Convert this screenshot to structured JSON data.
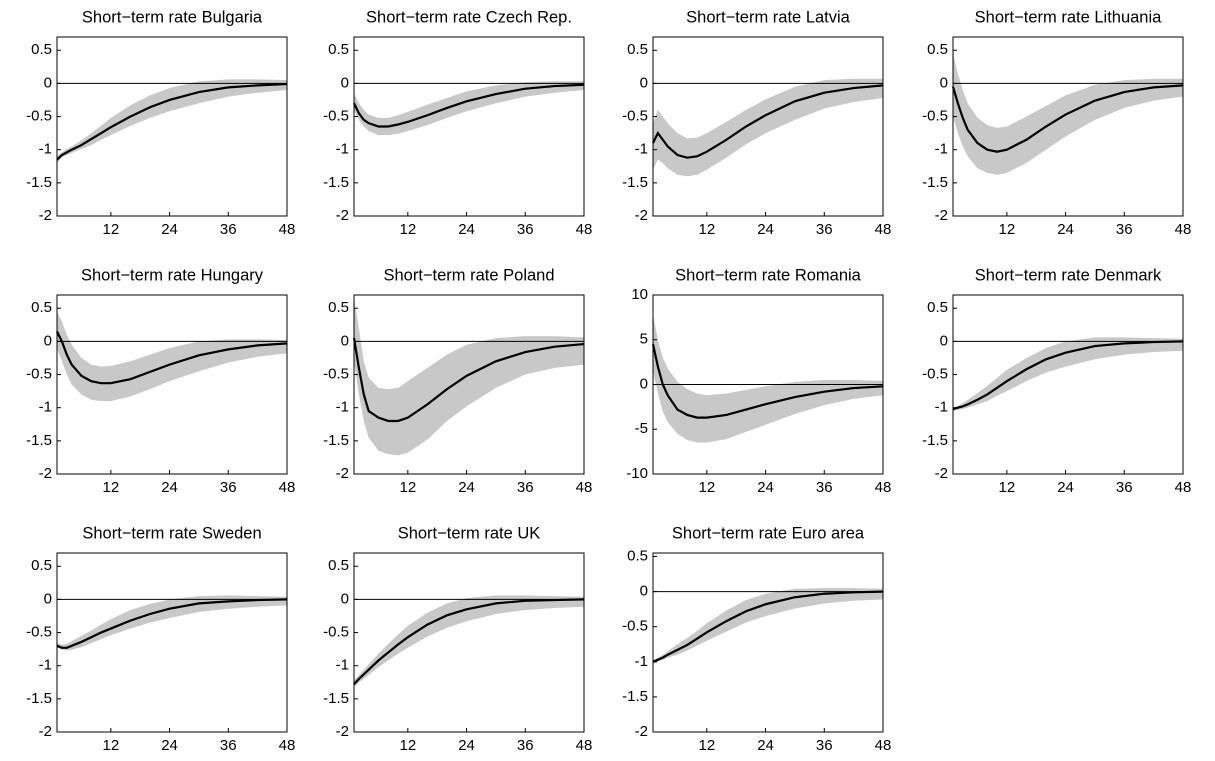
{
  "chart_data": [
    {
      "type": "line",
      "title": "Short−term rate Bulgaria",
      "x": [
        1,
        2,
        3,
        4,
        6,
        8,
        10,
        12,
        16,
        20,
        24,
        30,
        36,
        42,
        48
      ],
      "xlim": [
        1,
        48
      ],
      "xticks": [
        12,
        24,
        36,
        48
      ],
      "ylim": [
        -2,
        0.7
      ],
      "yticks": [
        -2,
        -1.5,
        -1,
        -0.5,
        0,
        0.5
      ],
      "hline": 0,
      "band": {
        "color": "#c8c8c8",
        "lower": [
          -1.2,
          -1.12,
          -1.08,
          -1.05,
          -0.99,
          -0.93,
          -0.85,
          -0.78,
          -0.64,
          -0.52,
          -0.42,
          -0.3,
          -0.2,
          -0.14,
          -0.1
        ],
        "upper": [
          -1.1,
          -1.04,
          -0.99,
          -0.95,
          -0.86,
          -0.75,
          -0.64,
          -0.52,
          -0.33,
          -0.18,
          -0.07,
          0.03,
          0.06,
          0.06,
          0.05
        ]
      },
      "series": [
        {
          "color": "#000000",
          "values": [
            -1.15,
            -1.08,
            -1.04,
            -1.0,
            -0.93,
            -0.84,
            -0.75,
            -0.66,
            -0.5,
            -0.36,
            -0.25,
            -0.13,
            -0.06,
            -0.03,
            -0.01
          ]
        }
      ]
    },
    {
      "type": "line",
      "title": "Short−term rate Czech Rep.",
      "x": [
        1,
        2,
        3,
        4,
        6,
        8,
        10,
        12,
        16,
        20,
        24,
        30,
        36,
        42,
        48
      ],
      "xlim": [
        1,
        48
      ],
      "xticks": [
        12,
        24,
        36,
        48
      ],
      "ylim": [
        -2,
        0.7
      ],
      "yticks": [
        -2,
        -1.5,
        -1,
        -0.5,
        0,
        0.5
      ],
      "hline": 0,
      "band": {
        "color": "#c8c8c8",
        "lower": [
          -0.4,
          -0.55,
          -0.65,
          -0.72,
          -0.78,
          -0.78,
          -0.76,
          -0.72,
          -0.63,
          -0.52,
          -0.42,
          -0.3,
          -0.2,
          -0.14,
          -0.1
        ],
        "upper": [
          -0.15,
          -0.3,
          -0.4,
          -0.47,
          -0.52,
          -0.52,
          -0.48,
          -0.43,
          -0.32,
          -0.22,
          -0.12,
          -0.03,
          0.02,
          0.03,
          0.03
        ]
      },
      "series": [
        {
          "color": "#000000",
          "values": [
            -0.3,
            -0.45,
            -0.55,
            -0.6,
            -0.65,
            -0.65,
            -0.62,
            -0.58,
            -0.48,
            -0.37,
            -0.27,
            -0.16,
            -0.08,
            -0.04,
            -0.02
          ]
        }
      ]
    },
    {
      "type": "line",
      "title": "Short−term rate Latvia",
      "x": [
        1,
        2,
        3,
        4,
        6,
        8,
        10,
        12,
        16,
        20,
        24,
        30,
        36,
        42,
        48
      ],
      "xlim": [
        1,
        48
      ],
      "xticks": [
        12,
        24,
        36,
        48
      ],
      "ylim": [
        -2,
        0.7
      ],
      "yticks": [
        -2,
        -1.5,
        -1,
        -0.5,
        0,
        0.5
      ],
      "hline": 0,
      "band": {
        "color": "#c8c8c8",
        "lower": [
          -1.3,
          -1.15,
          -1.2,
          -1.28,
          -1.38,
          -1.4,
          -1.38,
          -1.3,
          -1.12,
          -0.92,
          -0.75,
          -0.55,
          -0.38,
          -0.28,
          -0.22
        ],
        "upper": [
          -0.6,
          -0.4,
          -0.5,
          -0.6,
          -0.75,
          -0.83,
          -0.82,
          -0.75,
          -0.58,
          -0.4,
          -0.24,
          -0.05,
          0.05,
          0.07,
          0.07
        ]
      },
      "series": [
        {
          "color": "#000000",
          "values": [
            -0.9,
            -0.75,
            -0.85,
            -0.95,
            -1.08,
            -1.12,
            -1.1,
            -1.03,
            -0.85,
            -0.65,
            -0.48,
            -0.27,
            -0.14,
            -0.07,
            -0.03
          ]
        }
      ]
    },
    {
      "type": "line",
      "title": "Short−term rate Lithuania",
      "x": [
        1,
        2,
        3,
        4,
        6,
        8,
        10,
        12,
        16,
        20,
        24,
        30,
        36,
        42,
        48
      ],
      "xlim": [
        1,
        48
      ],
      "xticks": [
        12,
        24,
        36,
        48
      ],
      "ylim": [
        -2,
        0.7
      ],
      "yticks": [
        -2,
        -1.5,
        -1,
        -0.5,
        0,
        0.5
      ],
      "hline": 0,
      "band": {
        "color": "#c8c8c8",
        "lower": [
          -0.5,
          -0.75,
          -0.95,
          -1.1,
          -1.28,
          -1.35,
          -1.38,
          -1.35,
          -1.2,
          -1.0,
          -0.8,
          -0.55,
          -0.37,
          -0.26,
          -0.2
        ],
        "upper": [
          0.45,
          0.15,
          -0.1,
          -0.3,
          -0.52,
          -0.63,
          -0.67,
          -0.65,
          -0.5,
          -0.34,
          -0.18,
          -0.02,
          0.05,
          0.07,
          0.07
        ]
      },
      "series": [
        {
          "color": "#000000",
          "values": [
            -0.05,
            -0.3,
            -0.52,
            -0.7,
            -0.9,
            -1.0,
            -1.03,
            -1.0,
            -0.85,
            -0.65,
            -0.47,
            -0.26,
            -0.13,
            -0.06,
            -0.03
          ]
        }
      ]
    },
    {
      "type": "line",
      "title": "Short−term rate Hungary",
      "x": [
        1,
        2,
        3,
        4,
        6,
        8,
        10,
        12,
        16,
        20,
        24,
        30,
        36,
        42,
        48
      ],
      "xlim": [
        1,
        48
      ],
      "xticks": [
        12,
        24,
        36,
        48
      ],
      "ylim": [
        -2,
        0.7
      ],
      "yticks": [
        -2,
        -1.5,
        -1,
        -0.5,
        0,
        0.5
      ],
      "hline": 0,
      "band": {
        "color": "#c8c8c8",
        "lower": [
          -0.1,
          -0.3,
          -0.5,
          -0.65,
          -0.8,
          -0.88,
          -0.9,
          -0.9,
          -0.83,
          -0.72,
          -0.6,
          -0.45,
          -0.32,
          -0.23,
          -0.18
        ],
        "upper": [
          0.45,
          0.3,
          0.1,
          -0.05,
          -0.25,
          -0.35,
          -0.38,
          -0.37,
          -0.3,
          -0.2,
          -0.1,
          0.0,
          0.03,
          0.03,
          0.02
        ]
      },
      "series": [
        {
          "color": "#000000",
          "values": [
            0.15,
            0.0,
            -0.2,
            -0.35,
            -0.52,
            -0.6,
            -0.63,
            -0.63,
            -0.57,
            -0.46,
            -0.35,
            -0.21,
            -0.12,
            -0.06,
            -0.03
          ]
        }
      ]
    },
    {
      "type": "line",
      "title": "Short−term rate Poland",
      "x": [
        1,
        2,
        3,
        4,
        6,
        8,
        10,
        12,
        16,
        20,
        24,
        30,
        36,
        42,
        48
      ],
      "xlim": [
        1,
        48
      ],
      "xticks": [
        12,
        24,
        36,
        48
      ],
      "ylim": [
        -2,
        0.7
      ],
      "yticks": [
        -2,
        -1.5,
        -1,
        -0.5,
        0,
        0.5
      ],
      "hline": 0,
      "band": {
        "color": "#c8c8c8",
        "lower": [
          -0.3,
          -0.8,
          -1.2,
          -1.45,
          -1.65,
          -1.7,
          -1.72,
          -1.68,
          -1.48,
          -1.2,
          -0.98,
          -0.7,
          -0.5,
          -0.4,
          -0.35
        ],
        "upper": [
          0.65,
          0.2,
          -0.3,
          -0.55,
          -0.7,
          -0.72,
          -0.7,
          -0.6,
          -0.4,
          -0.2,
          -0.05,
          0.05,
          0.08,
          0.08,
          0.06
        ]
      },
      "series": [
        {
          "color": "#000000",
          "values": [
            0.05,
            -0.4,
            -0.8,
            -1.05,
            -1.15,
            -1.2,
            -1.2,
            -1.15,
            -0.95,
            -0.72,
            -0.52,
            -0.3,
            -0.16,
            -0.08,
            -0.04
          ]
        }
      ]
    },
    {
      "type": "line",
      "title": "Short−term rate Romania",
      "x": [
        1,
        2,
        3,
        4,
        6,
        8,
        10,
        12,
        16,
        20,
        24,
        30,
        36,
        42,
        48
      ],
      "xlim": [
        1,
        48
      ],
      "xticks": [
        12,
        24,
        36,
        48
      ],
      "ylim": [
        -10,
        10
      ],
      "yticks": [
        -10,
        -5,
        0,
        5,
        10
      ],
      "hline": 0,
      "band": {
        "color": "#c8c8c8",
        "lower": [
          1.5,
          -1,
          -3,
          -4.2,
          -5.5,
          -6.2,
          -6.5,
          -6.5,
          -6.1,
          -5.3,
          -4.5,
          -3.3,
          -2.3,
          -1.6,
          -1.2
        ],
        "upper": [
          7.8,
          5,
          3,
          1.8,
          0.3,
          -0.5,
          -1,
          -1.2,
          -1.0,
          -0.6,
          -0.2,
          0.3,
          0.5,
          0.5,
          0.4
        ]
      },
      "series": [
        {
          "color": "#000000",
          "values": [
            4.5,
            2,
            0,
            -1.2,
            -2.8,
            -3.4,
            -3.7,
            -3.7,
            -3.4,
            -2.8,
            -2.2,
            -1.4,
            -0.8,
            -0.4,
            -0.2
          ]
        }
      ]
    },
    {
      "type": "line",
      "title": "Short−term rate Denmark",
      "x": [
        1,
        2,
        3,
        4,
        6,
        8,
        10,
        12,
        16,
        20,
        24,
        30,
        36,
        42,
        48
      ],
      "xlim": [
        1,
        48
      ],
      "xticks": [
        12,
        24,
        36,
        48
      ],
      "ylim": [
        -2,
        0.7
      ],
      "yticks": [
        -2,
        -1.5,
        -1,
        -0.5,
        0,
        0.5
      ],
      "hline": 0,
      "band": {
        "color": "#c8c8c8",
        "lower": [
          -1.05,
          -1.03,
          -1.02,
          -1.0,
          -0.95,
          -0.9,
          -0.82,
          -0.75,
          -0.6,
          -0.47,
          -0.38,
          -0.27,
          -0.2,
          -0.16,
          -0.14
        ],
        "upper": [
          -1.0,
          -0.97,
          -0.93,
          -0.88,
          -0.78,
          -0.67,
          -0.55,
          -0.43,
          -0.25,
          -0.1,
          0.0,
          0.06,
          0.06,
          0.05,
          0.04
        ]
      },
      "series": [
        {
          "color": "#000000",
          "values": [
            -1.02,
            -1.0,
            -0.98,
            -0.95,
            -0.88,
            -0.8,
            -0.7,
            -0.6,
            -0.42,
            -0.27,
            -0.17,
            -0.07,
            -0.03,
            -0.01,
            0
          ]
        }
      ]
    },
    {
      "type": "line",
      "title": "Short−term rate Sweden",
      "x": [
        1,
        2,
        3,
        4,
        6,
        8,
        10,
        12,
        16,
        20,
        24,
        30,
        36,
        42,
        48
      ],
      "xlim": [
        1,
        48
      ],
      "xticks": [
        12,
        24,
        36,
        48
      ],
      "ylim": [
        -2,
        0.7
      ],
      "yticks": [
        -2,
        -1.5,
        -1,
        -0.5,
        0,
        0.5
      ],
      "hline": 0,
      "band": {
        "color": "#c8c8c8",
        "lower": [
          -0.72,
          -0.76,
          -0.77,
          -0.76,
          -0.72,
          -0.66,
          -0.6,
          -0.54,
          -0.44,
          -0.35,
          -0.28,
          -0.19,
          -0.14,
          -0.11,
          -0.09
        ],
        "upper": [
          -0.66,
          -0.68,
          -0.67,
          -0.63,
          -0.55,
          -0.47,
          -0.38,
          -0.3,
          -0.16,
          -0.07,
          0.0,
          0.05,
          0.06,
          0.05,
          0.04
        ]
      },
      "series": [
        {
          "color": "#000000",
          "values": [
            -0.7,
            -0.73,
            -0.73,
            -0.7,
            -0.64,
            -0.57,
            -0.5,
            -0.44,
            -0.32,
            -0.22,
            -0.14,
            -0.06,
            -0.03,
            -0.01,
            0
          ]
        }
      ]
    },
    {
      "type": "line",
      "title": "Short−term rate UK",
      "x": [
        1,
        2,
        3,
        4,
        6,
        8,
        10,
        12,
        16,
        20,
        24,
        30,
        36,
        42,
        48
      ],
      "xlim": [
        1,
        48
      ],
      "xticks": [
        12,
        24,
        36,
        48
      ],
      "ylim": [
        -2,
        0.7
      ],
      "yticks": [
        -2,
        -1.5,
        -1,
        -0.5,
        0,
        0.5
      ],
      "hline": 0,
      "band": {
        "color": "#c8c8c8",
        "lower": [
          -1.32,
          -1.25,
          -1.2,
          -1.14,
          -1.02,
          -0.92,
          -0.82,
          -0.73,
          -0.56,
          -0.43,
          -0.33,
          -0.22,
          -0.16,
          -0.13,
          -0.11
        ],
        "upper": [
          -1.22,
          -1.14,
          -1.06,
          -0.98,
          -0.82,
          -0.67,
          -0.53,
          -0.4,
          -0.2,
          -0.06,
          0.02,
          0.06,
          0.06,
          0.05,
          0.04
        ]
      },
      "series": [
        {
          "color": "#000000",
          "values": [
            -1.28,
            -1.2,
            -1.13,
            -1.06,
            -0.92,
            -0.8,
            -0.68,
            -0.57,
            -0.38,
            -0.24,
            -0.15,
            -0.06,
            -0.02,
            -0.01,
            0
          ]
        }
      ]
    },
    {
      "type": "line",
      "title": "Short−term rate Euro area",
      "x": [
        1,
        2,
        3,
        4,
        6,
        8,
        10,
        12,
        16,
        20,
        24,
        30,
        36,
        42,
        48
      ],
      "xlim": [
        1,
        48
      ],
      "xticks": [
        12,
        24,
        36,
        48
      ],
      "ylim": [
        -2,
        0.55
      ],
      "yticks": [
        -2,
        -1.5,
        -1,
        -0.5,
        0,
        0.5
      ],
      "hline": 0,
      "band": {
        "color": "#c8c8c8",
        "lower": [
          -1.02,
          -1.0,
          -0.97,
          -0.94,
          -0.9,
          -0.84,
          -0.77,
          -0.7,
          -0.57,
          -0.44,
          -0.35,
          -0.24,
          -0.17,
          -0.13,
          -0.11
        ],
        "upper": [
          -0.98,
          -0.94,
          -0.9,
          -0.85,
          -0.75,
          -0.66,
          -0.56,
          -0.45,
          -0.27,
          -0.12,
          -0.03,
          0.04,
          0.05,
          0.05,
          0.04
        ]
      },
      "series": [
        {
          "color": "#000000",
          "values": [
            -1.0,
            -0.97,
            -0.94,
            -0.9,
            -0.83,
            -0.76,
            -0.67,
            -0.58,
            -0.42,
            -0.28,
            -0.18,
            -0.08,
            -0.03,
            -0.01,
            0
          ]
        }
      ]
    }
  ]
}
